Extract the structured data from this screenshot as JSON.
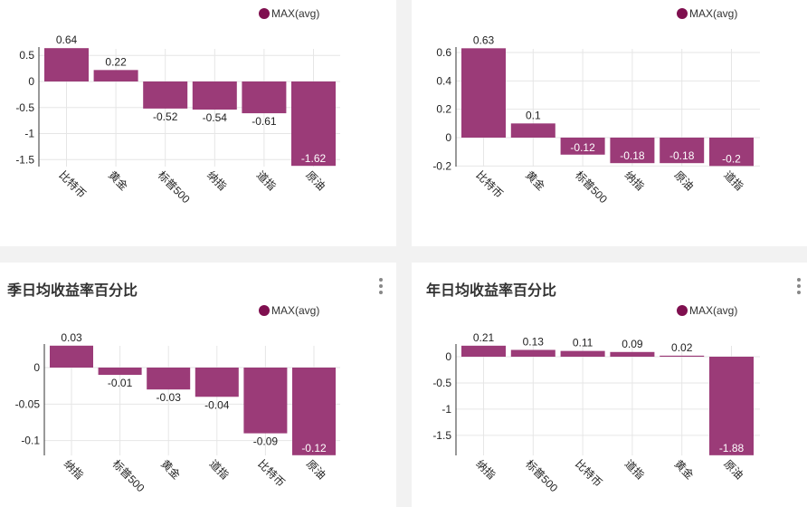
{
  "legend_label": "MAX(avg)",
  "colors": {
    "bar": "#9b3b78",
    "legend_dot": "#7f0f4f",
    "grid": "#e6e6e6",
    "axis": "#333333"
  },
  "panels": [
    {
      "title": ""
    },
    {
      "title": ""
    },
    {
      "title": "季日均收益率百分比"
    },
    {
      "title": "年日均收益率百分比"
    }
  ],
  "chart_data": [
    {
      "type": "bar",
      "title": "",
      "legend": [
        "MAX(avg)"
      ],
      "legend_placement": "top-right",
      "categories": [
        "比特币",
        "黄金",
        "标普500",
        "纳指",
        "道指",
        "原油"
      ],
      "values": [
        0.64,
        0.22,
        -0.52,
        -0.54,
        -0.61,
        -1.62
      ],
      "yticks": [
        0.5,
        0,
        -0.5,
        -1,
        -1.5
      ],
      "ytick_labels": [
        "0.5",
        "0",
        "-0.5",
        "-1",
        "-1.5"
      ],
      "ylim": [
        -1.62,
        0.64
      ],
      "grid": true
    },
    {
      "type": "bar",
      "title": "",
      "legend": [
        "MAX(avg)"
      ],
      "legend_placement": "top-right",
      "categories": [
        "比特币",
        "黄金",
        "标普500",
        "纳指",
        "原油",
        "道指"
      ],
      "values": [
        0.63,
        0.1,
        -0.12,
        -0.18,
        -0.18,
        -0.2
      ],
      "yticks": [
        0.6,
        0.4,
        0.2,
        0,
        -0.2
      ],
      "ytick_labels": [
        "0.6",
        "0.4",
        "0.2",
        "0",
        "-0.2"
      ],
      "ylim": [
        -0.2,
        0.63
      ],
      "grid": true
    },
    {
      "type": "bar",
      "title": "季日均收益率百分比",
      "legend": [
        "MAX(avg)"
      ],
      "legend_placement": "top-right",
      "categories": [
        "纳指",
        "标普500",
        "黄金",
        "道指",
        "比特币",
        "原油"
      ],
      "values": [
        0.03,
        -0.01,
        -0.03,
        -0.04,
        -0.09,
        -0.12
      ],
      "yticks": [
        0,
        -0.05,
        -0.1
      ],
      "ytick_labels": [
        "0",
        "-0.05",
        "-0.1"
      ],
      "ylim": [
        -0.12,
        0.03
      ],
      "grid": true
    },
    {
      "type": "bar",
      "title": "年日均收益率百分比",
      "legend": [
        "MAX(avg)"
      ],
      "legend_placement": "top-right",
      "categories": [
        "纳指",
        "标普500",
        "比特币",
        "道指",
        "黄金",
        "原油"
      ],
      "values": [
        0.21,
        0.13,
        0.11,
        0.09,
        0.02,
        -1.88
      ],
      "yticks": [
        0,
        -0.5,
        -1,
        -1.5
      ],
      "ytick_labels": [
        "0",
        "-0.5",
        "-1",
        "-1.5"
      ],
      "ylim": [
        -1.88,
        0.21
      ],
      "grid": true
    }
  ]
}
